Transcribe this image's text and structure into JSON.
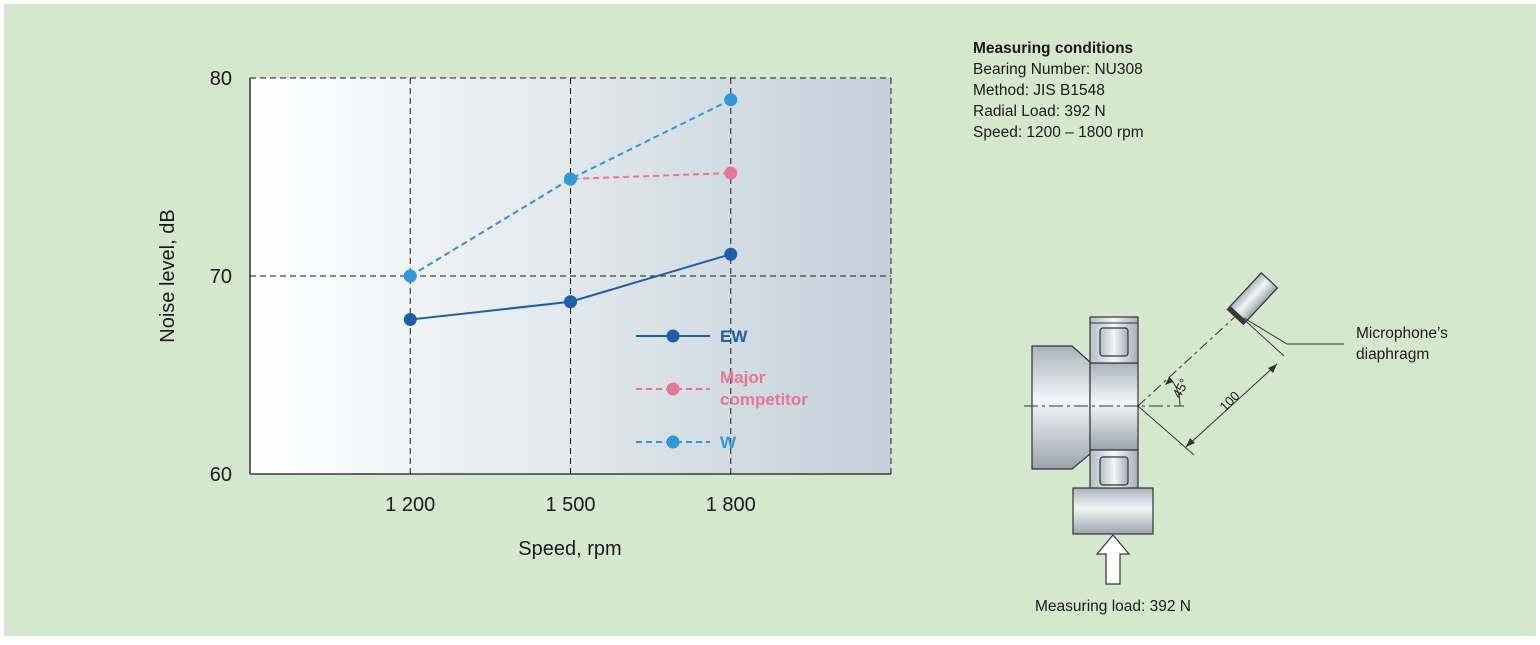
{
  "chart_data": {
    "type": "line",
    "xlabel": "Speed, rpm",
    "ylabel": "Noise level, dB",
    "categories": [
      "1 200",
      "1 500",
      "1 800"
    ],
    "x": [
      1200,
      1500,
      1800
    ],
    "xlim": [
      900,
      2100
    ],
    "ylim": [
      60,
      80
    ],
    "yticks": [
      "60",
      "70",
      "80"
    ],
    "grid": true,
    "legend_position": "inside-lower-right",
    "series": [
      {
        "name": "EW",
        "values": [
          67.8,
          68.7,
          71.1
        ],
        "color": "#1a5fa8",
        "style": "solid"
      },
      {
        "name": "Major competitor",
        "name_lines": [
          "Major",
          "competitor"
        ],
        "values": [
          70.0,
          74.9,
          75.2
        ],
        "color": "#e8768f",
        "style": "dashed"
      },
      {
        "name": "W",
        "values": [
          70.0,
          74.9,
          78.9
        ],
        "color": "#2a9bd8",
        "style": "dashed"
      }
    ]
  },
  "conditions": {
    "title": "Measuring conditions",
    "lines": [
      "Bearing Number: NU308",
      "Method: JIS B1548",
      "Radial Load: 392 N",
      "Speed: 1200 – 1800 rpm"
    ]
  },
  "diagram": {
    "microphone_label_1": "Microphone’s",
    "microphone_label_2": "diaphragm",
    "angle_label": "45°",
    "distance_label": "100",
    "load_label": "Measuring load: 392 N"
  }
}
